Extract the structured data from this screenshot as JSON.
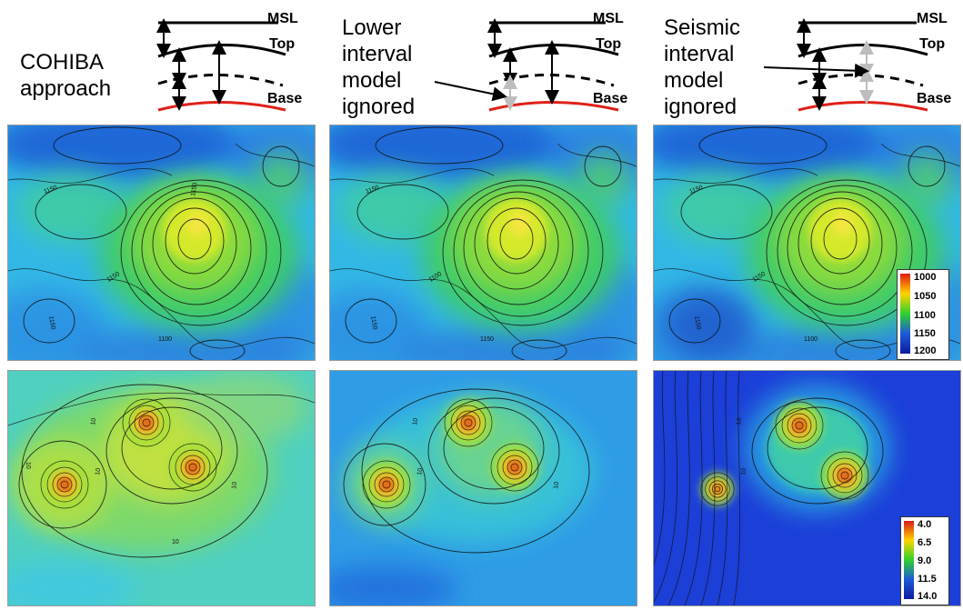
{
  "columns": [
    {
      "heading_lines": [
        "COHIBA",
        "approach"
      ],
      "labels": {
        "msl": "MSL",
        "top": "Top",
        "base": "Base"
      }
    },
    {
      "heading_lines": [
        "Lower",
        "interval",
        "model",
        "ignored"
      ],
      "labels": {
        "msl": "MSL",
        "top": "Top",
        "base": "Base"
      }
    },
    {
      "heading_lines": [
        "Seismic",
        "interval",
        "model",
        "ignored"
      ],
      "labels": {
        "msl": "MSL",
        "top": "Top",
        "base": "Base"
      }
    }
  ],
  "maps": {
    "depth": [
      {
        "contour_labels": [
          "1150",
          "1150",
          "1100",
          "1150",
          "1150"
        ]
      },
      {
        "contour_labels": [
          "1150",
          "1100",
          "1150",
          "1150"
        ]
      },
      {
        "contour_labels": [
          "1150",
          "1150",
          "1100",
          "1150"
        ]
      }
    ],
    "uncertainty": [
      {
        "contour_labels": [
          "10",
          "10",
          "10",
          "10",
          "10"
        ]
      },
      {
        "contour_labels": [
          "10",
          "10",
          "10"
        ]
      },
      {
        "contour_labels": [
          "10",
          "10"
        ]
      }
    ]
  },
  "depth_colorbar": {
    "ticks": [
      "1000",
      "1050",
      "1100",
      "1150",
      "1200"
    ],
    "colors": [
      "#e0190f",
      "#ffd400",
      "#2fd12e",
      "#1e5ad8",
      "#0b1a9e"
    ]
  },
  "uncertainty_colorbar": {
    "ticks": [
      "4.0",
      "6.5",
      "9.0",
      "11.5",
      "14.0"
    ],
    "colors": [
      "#d7191c",
      "#ffd400",
      "#2fd12e",
      "#1e5ad8",
      "#0b1a9e"
    ]
  }
}
